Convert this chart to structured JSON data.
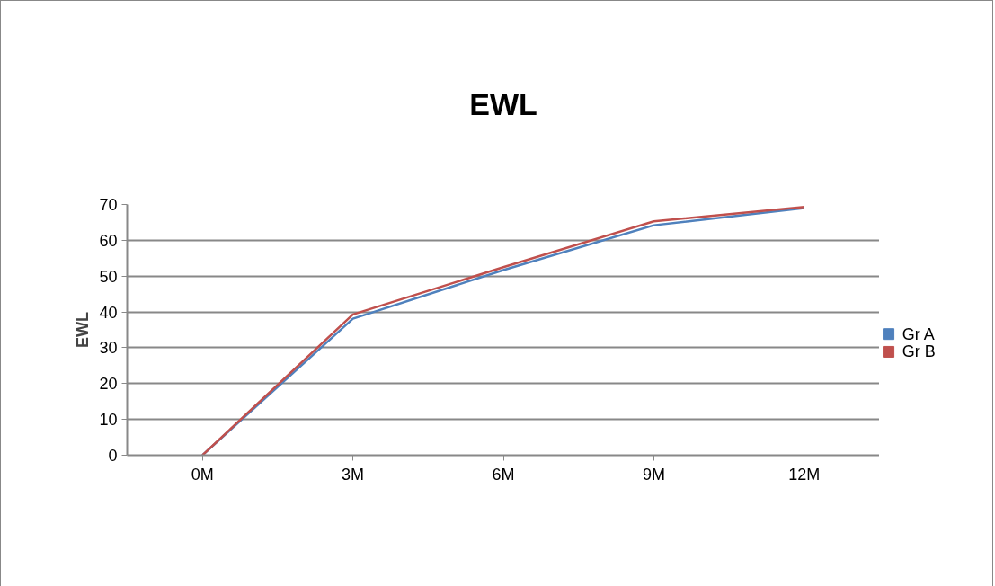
{
  "chart_data": {
    "type": "line",
    "title": "EWL",
    "ylabel": "EWL",
    "categories": [
      "0M",
      "3M",
      "6M",
      "9M",
      "12M"
    ],
    "series": [
      {
        "name": "Gr A",
        "color": "#4f81bd",
        "values": [
          0,
          38.1,
          51.7,
          64.2,
          69.0
        ]
      },
      {
        "name": "Gr B",
        "color": "#c0504d",
        "values": [
          0,
          39.3,
          52.5,
          65.3,
          69.3
        ]
      }
    ],
    "ylim": [
      0,
      70
    ],
    "yticks": [
      0,
      10,
      20,
      30,
      40,
      50,
      60,
      70
    ],
    "grid": "y",
    "legend": "right",
    "marker": "none",
    "line_style": "solid"
  }
}
